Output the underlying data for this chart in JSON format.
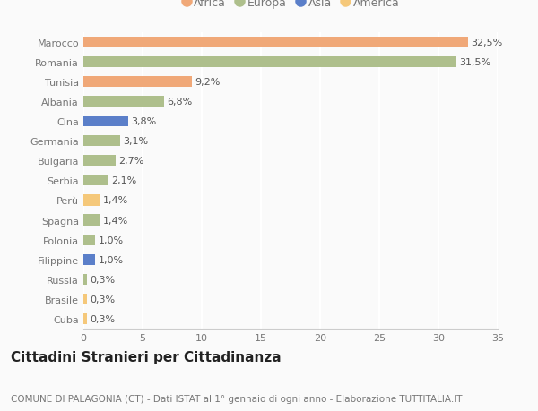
{
  "categories": [
    "Cuba",
    "Brasile",
    "Russia",
    "Filippine",
    "Polonia",
    "Spagna",
    "Perù",
    "Serbia",
    "Bulgaria",
    "Germania",
    "Cina",
    "Albania",
    "Tunisia",
    "Romania",
    "Marocco"
  ],
  "values": [
    0.3,
    0.3,
    0.3,
    1.0,
    1.0,
    1.4,
    1.4,
    2.1,
    2.7,
    3.1,
    3.8,
    6.8,
    9.2,
    31.5,
    32.5
  ],
  "labels": [
    "0,3%",
    "0,3%",
    "0,3%",
    "1,0%",
    "1,0%",
    "1,4%",
    "1,4%",
    "2,1%",
    "2,7%",
    "3,1%",
    "3,8%",
    "6,8%",
    "9,2%",
    "31,5%",
    "32,5%"
  ],
  "colors": [
    "#F5C87A",
    "#F5C87A",
    "#AEBF8C",
    "#5B7FC9",
    "#AEBF8C",
    "#AEBF8C",
    "#F5C87A",
    "#AEBF8C",
    "#AEBF8C",
    "#AEBF8C",
    "#5B7FC9",
    "#AEBF8C",
    "#F0A878",
    "#AEBF8C",
    "#F0A878"
  ],
  "legend": [
    {
      "label": "Africa",
      "color": "#F0A878"
    },
    {
      "label": "Europa",
      "color": "#AEBF8C"
    },
    {
      "label": "Asia",
      "color": "#5B7FC9"
    },
    {
      "label": "America",
      "color": "#F5C87A"
    }
  ],
  "xlim": [
    0,
    35
  ],
  "xticks": [
    0,
    5,
    10,
    15,
    20,
    25,
    30,
    35
  ],
  "title": "Cittadini Stranieri per Cittadinanza",
  "subtitle": "COMUNE DI PALAGONIA (CT) - Dati ISTAT al 1° gennaio di ogni anno - Elaborazione TUTTITALIA.IT",
  "background_color": "#FAFAFA",
  "bar_height": 0.55,
  "label_fontsize": 8,
  "tick_fontsize": 8,
  "title_fontsize": 11,
  "subtitle_fontsize": 7.5,
  "ytick_color": "#777777",
  "xtick_color": "#777777",
  "label_color": "#555555",
  "grid_color": "#FFFFFF",
  "grid_linewidth": 1.5
}
